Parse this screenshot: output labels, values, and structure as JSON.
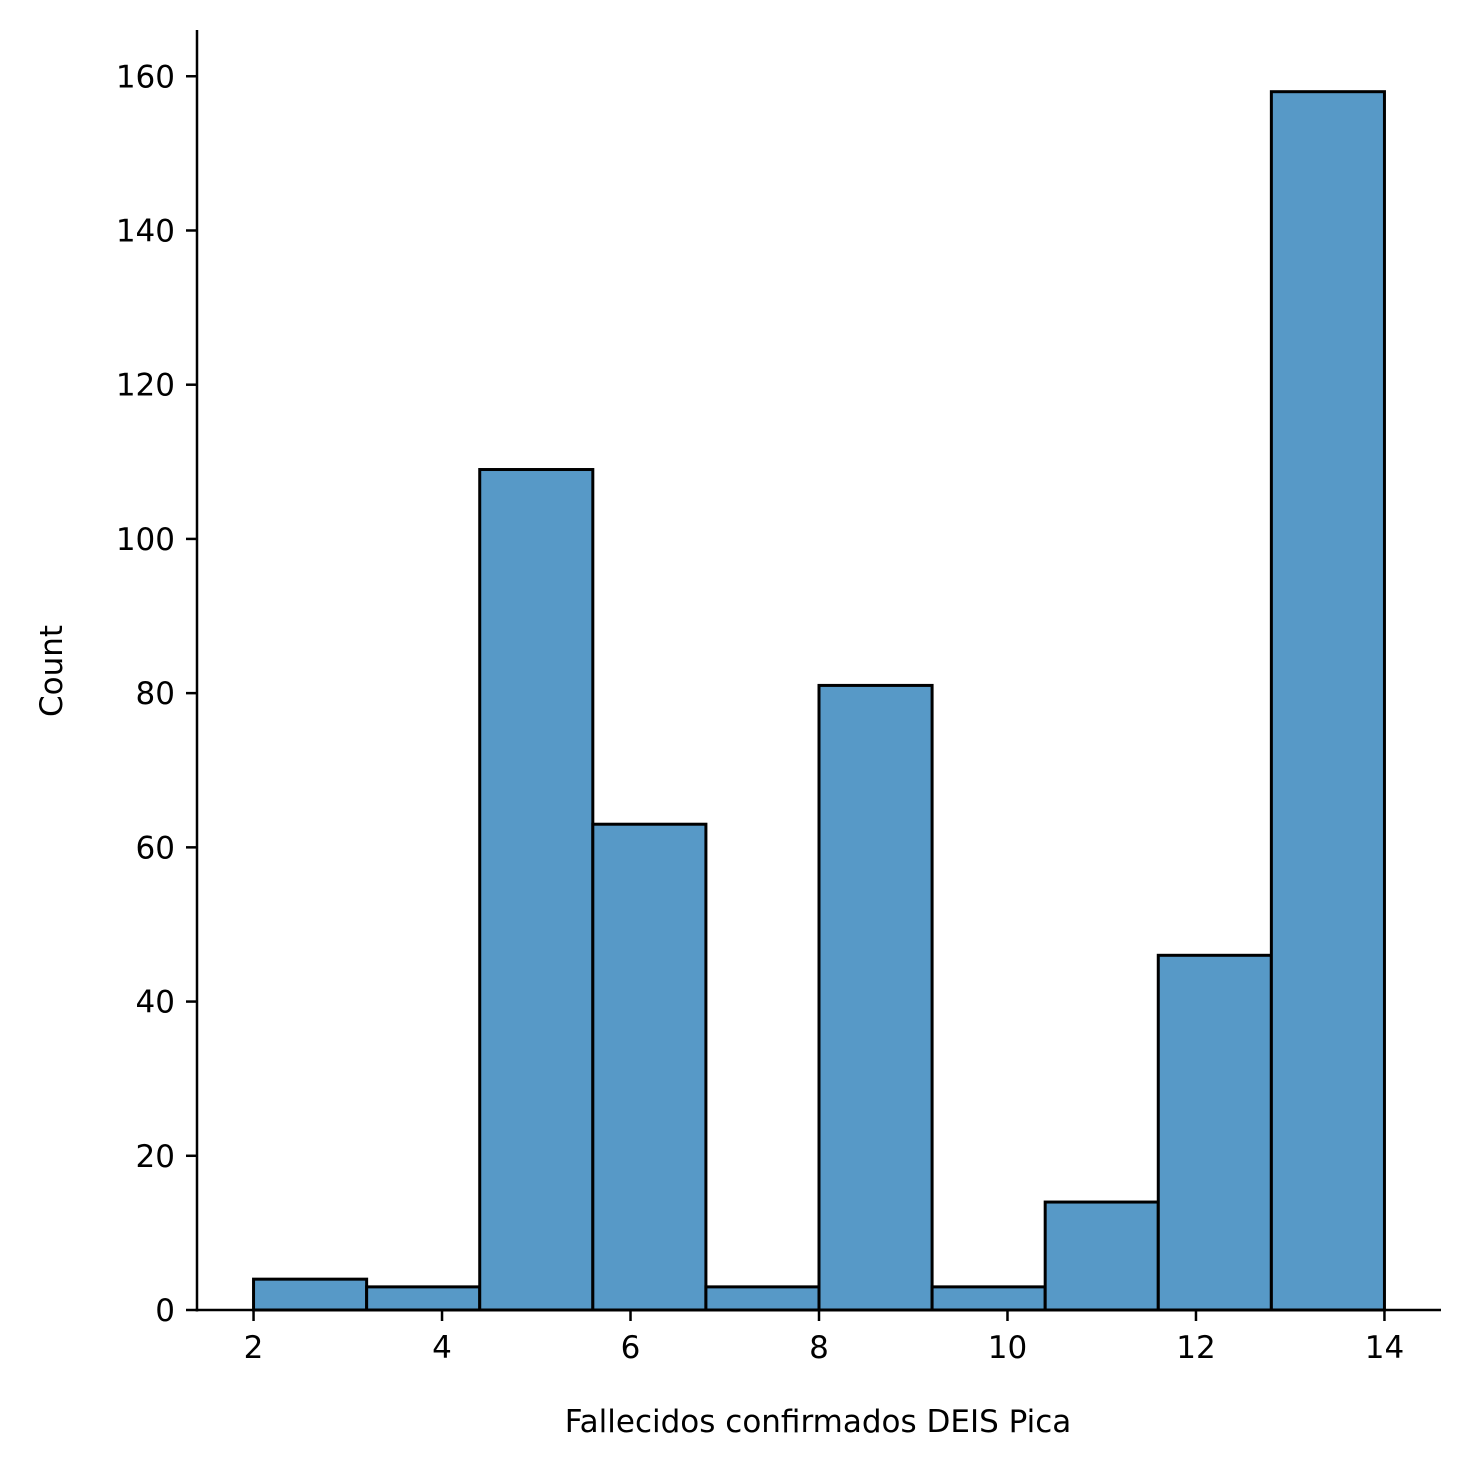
{
  "chart_data": {
    "type": "histogram",
    "title": "",
    "xlabel": "Fallecidos confirmados DEIS Pica",
    "ylabel": "Count",
    "bin_edges": [
      2.0,
      3.2,
      4.4,
      5.6,
      6.8,
      8.0,
      9.2,
      10.4,
      11.6,
      12.8,
      14.0
    ],
    "counts": [
      4,
      3,
      109,
      63,
      3,
      81,
      3,
      14,
      46,
      158
    ],
    "xlim": [
      1.4,
      14.6
    ],
    "ylim": [
      0,
      166
    ],
    "xticks": [
      2,
      4,
      6,
      8,
      10,
      12,
      14
    ],
    "yticks": [
      0,
      20,
      40,
      60,
      80,
      100,
      120,
      140,
      160
    ],
    "bar_color": "#5799c7",
    "edge_color": "#000000",
    "grid": false
  }
}
